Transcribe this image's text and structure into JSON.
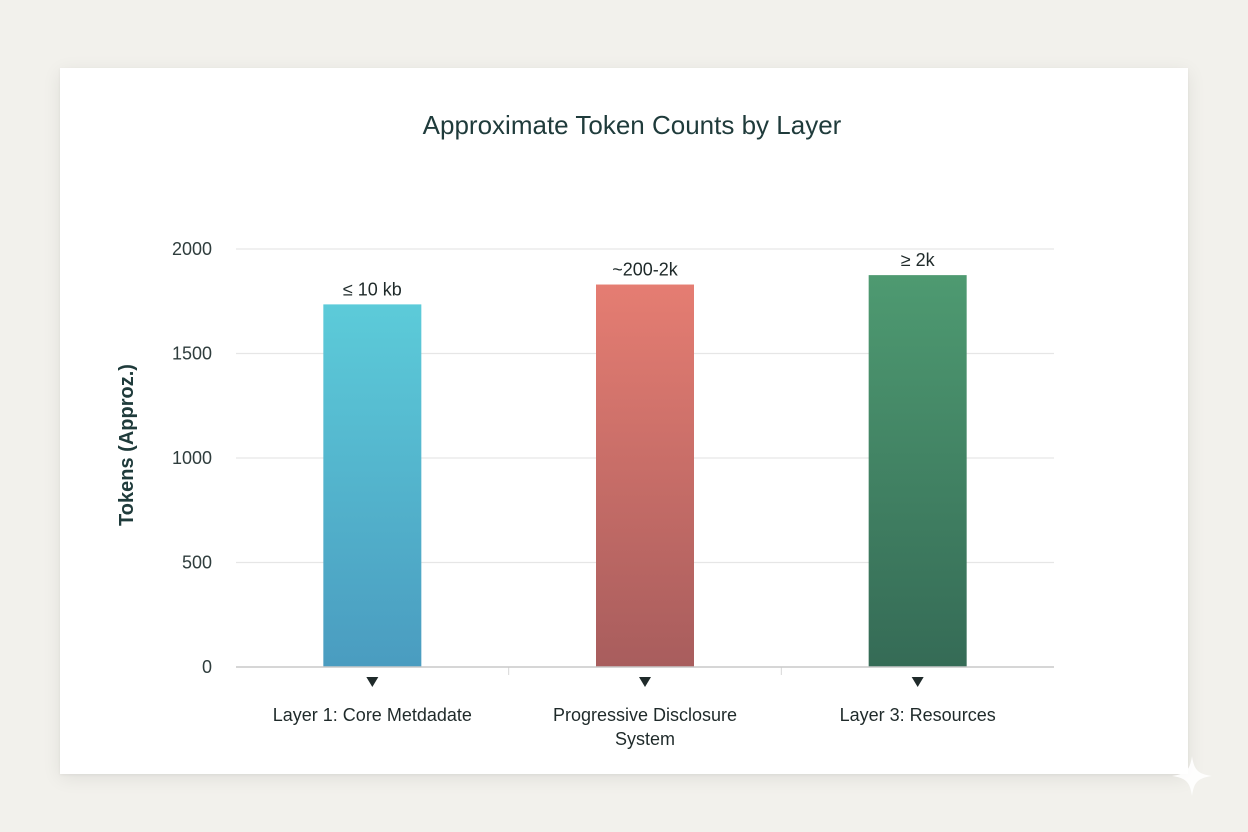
{
  "chart_data": {
    "type": "bar",
    "title": "Approximate Token Counts by Layer",
    "xlabel": "",
    "ylabel": "Tokens (Approz.)",
    "ylim": [
      0,
      2000
    ],
    "yticks": [
      0,
      500,
      1000,
      1500,
      2000
    ],
    "grid": true,
    "legend": "none",
    "categories": [
      [
        "Layer 1: Core Metdadate"
      ],
      [
        "Progressive Disclosure",
        "System"
      ],
      [
        "Layer 3: Resources"
      ]
    ],
    "values": [
      1735,
      1830,
      1875
    ],
    "data_labels": [
      "≤ 10 kb",
      "~200-2k",
      "≥ 2k"
    ],
    "colors": [
      [
        "#5ccbd9",
        "#4a9cc0"
      ],
      [
        "#e57d72",
        "#a85d5d"
      ],
      [
        "#4e9a71",
        "#356b56"
      ]
    ]
  }
}
